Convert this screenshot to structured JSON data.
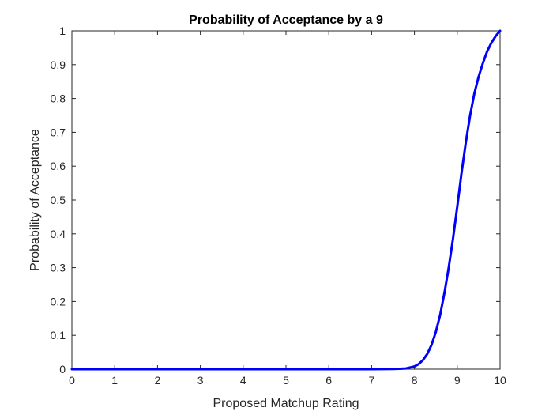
{
  "chart_data": {
    "type": "line",
    "title": "Probability of Acceptance by a 9",
    "xlabel": "Proposed Matchup Rating",
    "ylabel": "Probability of Acceptance",
    "xlim": [
      0,
      10
    ],
    "ylim": [
      0,
      1
    ],
    "xticks": [
      "0",
      "1",
      "2",
      "3",
      "4",
      "5",
      "6",
      "7",
      "8",
      "9",
      "10"
    ],
    "yticks": [
      "0",
      "0.1",
      "0.2",
      "0.3",
      "0.4",
      "0.5",
      "0.6",
      "0.7",
      "0.8",
      "0.9",
      "1"
    ],
    "grid": false,
    "box": true,
    "series": [
      {
        "color": "#0000ff",
        "x": [
          0,
          1,
          2,
          3,
          4,
          5,
          6,
          7,
          7.5,
          7.8,
          8.0,
          8.1,
          8.2,
          8.3,
          8.4,
          8.5,
          8.6,
          8.7,
          8.8,
          8.9,
          9.0,
          9.1,
          9.2,
          9.3,
          9.4,
          9.5,
          9.6,
          9.7,
          9.8,
          9.9,
          10
        ],
        "y": [
          0,
          0,
          0,
          0,
          0,
          0,
          0,
          0,
          0.0005,
          0.002,
          0.008,
          0.015,
          0.027,
          0.045,
          0.072,
          0.11,
          0.16,
          0.225,
          0.3,
          0.385,
          0.48,
          0.58,
          0.67,
          0.75,
          0.815,
          0.865,
          0.905,
          0.94,
          0.965,
          0.985,
          1.0
        ]
      }
    ]
  }
}
